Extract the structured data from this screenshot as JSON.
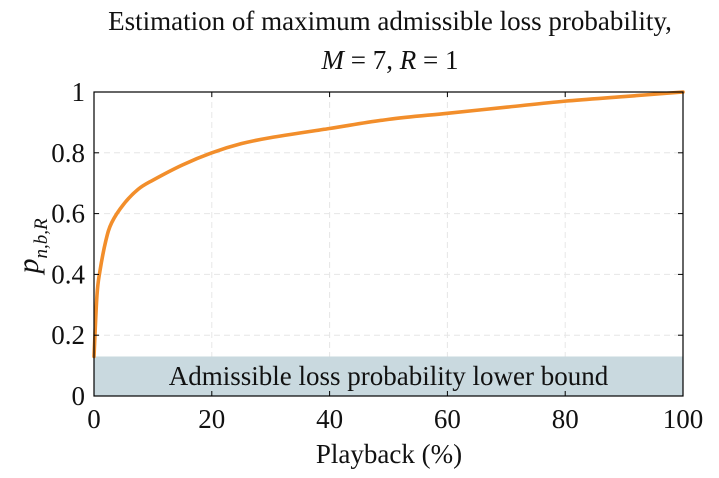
{
  "chart_data": {
    "type": "line",
    "title_line1": "Estimation of maximum admissible loss probability,",
    "title_line2": {
      "M_var": "M",
      "M_value": " = 7, ",
      "R_var": "R",
      "R_value": " = 1"
    },
    "xlabel": "Playback (%)",
    "ylabel": {
      "base": "p",
      "subscript": "n,b,R"
    },
    "xlim": [
      0,
      100
    ],
    "ylim": [
      0,
      1
    ],
    "x_ticks": [
      0,
      20,
      40,
      60,
      80,
      100
    ],
    "x_tick_labels": [
      "0",
      "20",
      "40",
      "60",
      "80",
      "100"
    ],
    "y_ticks": [
      0,
      0.2,
      0.4,
      0.6,
      0.8,
      1
    ],
    "y_tick_labels": [
      "0",
      "0.2",
      "0.4",
      "0.6",
      "0.8",
      "1"
    ],
    "grid": true,
    "line_color": "#f28e2b",
    "series": [
      {
        "x": [
          0,
          0.5,
          1,
          2,
          3,
          5,
          7.5,
          10,
          15,
          20,
          25,
          30,
          40,
          50,
          60,
          70,
          80,
          90,
          100
        ],
        "values": [
          0.13,
          0.33,
          0.41,
          0.51,
          0.57,
          0.63,
          0.68,
          0.71,
          0.76,
          0.8,
          0.83,
          0.85,
          0.88,
          0.91,
          0.93,
          0.95,
          0.97,
          0.985,
          1.0
        ]
      }
    ],
    "band": {
      "label": "Admissible loss probability lower bound",
      "y_range": [
        0,
        0.13
      ],
      "color": "#c9d9df"
    }
  }
}
